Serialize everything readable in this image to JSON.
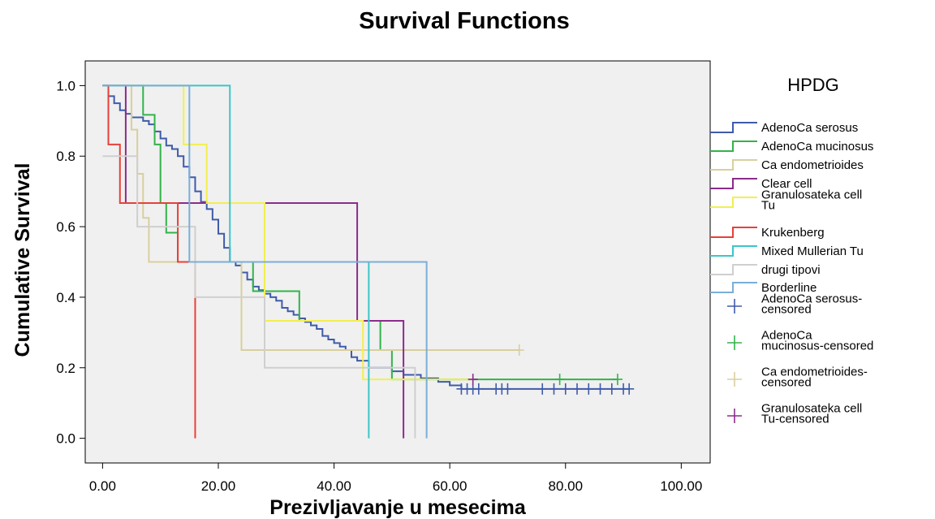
{
  "chart_data": {
    "type": "line",
    "subtype": "kaplan-meier step",
    "title": "Survival Functions",
    "xlabel": "Prezivljavanje u mesecima",
    "ylabel": "Cumulative Survival",
    "xlim": [
      -3,
      105
    ],
    "ylim": [
      -0.07,
      1.07
    ],
    "x_ticks": [
      0,
      20,
      40,
      60,
      80,
      100
    ],
    "x_tick_labels": [
      "0.00",
      "20.00",
      "40.00",
      "60.00",
      "80.00",
      "100.00"
    ],
    "y_ticks": [
      0,
      0.2,
      0.4,
      0.6,
      0.8,
      1.0
    ],
    "y_tick_labels": [
      "0.0",
      "0.2",
      "0.4",
      "0.6",
      "0.8",
      "1.0"
    ],
    "plot_background": "#f0f0f0",
    "grid": false,
    "legend": {
      "title": "HPDG",
      "placement": "right",
      "entries": [
        {
          "label": "AdenoCa serosus",
          "color": "#3f5ba9",
          "marker": "line"
        },
        {
          "label": "AdenoCa mucinosus",
          "color": "#33b34a",
          "marker": "line"
        },
        {
          "label": "Ca endometrioides",
          "color": "#d8cf9e",
          "marker": "line"
        },
        {
          "label": "Clear cell",
          "color": "#8b2c8b",
          "marker": "line"
        },
        {
          "label": [
            "Granulosateka cell",
            "Tu"
          ],
          "color": "#f2ef4e",
          "marker": "line"
        },
        {
          "label": "Krukenberg",
          "color": "#e8403a",
          "marker": "line"
        },
        {
          "label": "Mixed Mullerian Tu",
          "color": "#3cc6c8",
          "marker": "line"
        },
        {
          "label": "drugi tipovi",
          "color": "#cfcfcf",
          "marker": "line"
        },
        {
          "label": "Borderline",
          "color": "#7aaed9",
          "marker": "line"
        },
        {
          "label": [
            "AdenoCa serosus-",
            "censored"
          ],
          "color": "#3f5ba9",
          "marker": "plus"
        },
        {
          "label": [
            "AdenoCa",
            "mucinosus-censored"
          ],
          "color": "#33b34a",
          "marker": "plus"
        },
        {
          "label": [
            "Ca endometrioides-",
            "censored"
          ],
          "color": "#d8cf9e",
          "marker": "plus"
        },
        {
          "label": [
            "Granulosateka cell",
            "Tu-censored"
          ],
          "color": "#8b2c8b",
          "marker": "plus"
        }
      ]
    },
    "series": [
      {
        "name": "AdenoCa serosus",
        "color": "#3f5ba9",
        "x": [
          0,
          1,
          2,
          3,
          4,
          5,
          6,
          7,
          8,
          9,
          10,
          11,
          12,
          13,
          14,
          15,
          16,
          17,
          18,
          19,
          20,
          21,
          22,
          23,
          24,
          25,
          26,
          27,
          28,
          29,
          30,
          31,
          32,
          33,
          34,
          35,
          36,
          37,
          38,
          39,
          40,
          41,
          42,
          43,
          44,
          46,
          50,
          52,
          55,
          58,
          60,
          62,
          91
        ],
        "y": [
          1.0,
          0.97,
          0.95,
          0.93,
          0.92,
          0.91,
          0.91,
          0.9,
          0.89,
          0.87,
          0.85,
          0.83,
          0.82,
          0.8,
          0.77,
          0.74,
          0.7,
          0.67,
          0.65,
          0.62,
          0.58,
          0.54,
          0.5,
          0.49,
          0.47,
          0.45,
          0.43,
          0.42,
          0.41,
          0.4,
          0.39,
          0.37,
          0.36,
          0.35,
          0.34,
          0.33,
          0.32,
          0.31,
          0.29,
          0.28,
          0.27,
          0.26,
          0.25,
          0.23,
          0.22,
          0.2,
          0.19,
          0.18,
          0.17,
          0.16,
          0.15,
          0.14,
          0.14
        ]
      },
      {
        "name": "AdenoCa mucinosus",
        "color": "#33b34a",
        "x": [
          0,
          7,
          9,
          10,
          11,
          13,
          24,
          26,
          28,
          34,
          46,
          48,
          50,
          89
        ],
        "y": [
          1.0,
          0.917,
          0.833,
          0.667,
          0.583,
          0.5,
          0.5,
          0.417,
          0.417,
          0.333,
          0.333,
          0.25,
          0.167,
          0.167
        ]
      },
      {
        "name": "Ca endometrioides",
        "color": "#d8cf9e",
        "x": [
          0,
          4,
          5,
          6,
          7,
          8,
          24,
          28,
          72
        ],
        "y": [
          1.0,
          1.0,
          0.875,
          0.75,
          0.625,
          0.5,
          0.25,
          0.25,
          0.25
        ]
      },
      {
        "name": "Clear cell",
        "color": "#8b2c8b",
        "x": [
          0,
          4,
          44,
          52
        ],
        "y": [
          1.0,
          0.667,
          0.333,
          0.0
        ]
      },
      {
        "name": "Granulosateka cell Tu",
        "color": "#f2ef4e",
        "x": [
          0,
          14,
          18,
          28,
          45,
          64
        ],
        "y": [
          1.0,
          0.833,
          0.667,
          0.333,
          0.167,
          0.167
        ]
      },
      {
        "name": "Krukenberg",
        "color": "#e8403a",
        "x": [
          0,
          1,
          3,
          13,
          16
        ],
        "y": [
          1.0,
          0.833,
          0.667,
          0.5,
          0.0
        ]
      },
      {
        "name": "Mixed Mullerian Tu",
        "color": "#3cc6c8",
        "x": [
          0,
          22,
          46
        ],
        "y": [
          1.0,
          0.5,
          0.0
        ]
      },
      {
        "name": "drugi tipovi",
        "color": "#cfcfcf",
        "x": [
          0,
          3,
          6,
          16,
          28,
          54
        ],
        "y": [
          0.8,
          0.8,
          0.6,
          0.4,
          0.2,
          0.0
        ]
      },
      {
        "name": "Borderline",
        "color": "#7aaed9",
        "x": [
          0,
          15,
          56
        ],
        "y": [
          1.0,
          0.5,
          0.0
        ]
      }
    ],
    "censored": [
      {
        "name": "AdenoCa serosus-censored",
        "color": "#3f5ba9",
        "x": [
          62,
          63,
          64,
          65,
          68,
          69,
          70,
          76,
          78,
          80,
          82,
          84,
          86,
          88,
          90,
          91
        ],
        "y": [
          0.14,
          0.14,
          0.14,
          0.14,
          0.14,
          0.14,
          0.14,
          0.14,
          0.14,
          0.14,
          0.14,
          0.14,
          0.14,
          0.14,
          0.14,
          0.14
        ]
      },
      {
        "name": "AdenoCa mucinosus-censored",
        "color": "#33b34a",
        "x": [
          79,
          89
        ],
        "y": [
          0.167,
          0.167
        ]
      },
      {
        "name": "Ca endometrioides-censored",
        "color": "#d8cf9e",
        "x": [
          72
        ],
        "y": [
          0.25
        ]
      },
      {
        "name": "Granulosateka cell Tu-censored",
        "color": "#8b2c8b",
        "x": [
          64
        ],
        "y": [
          0.167
        ]
      }
    ]
  }
}
